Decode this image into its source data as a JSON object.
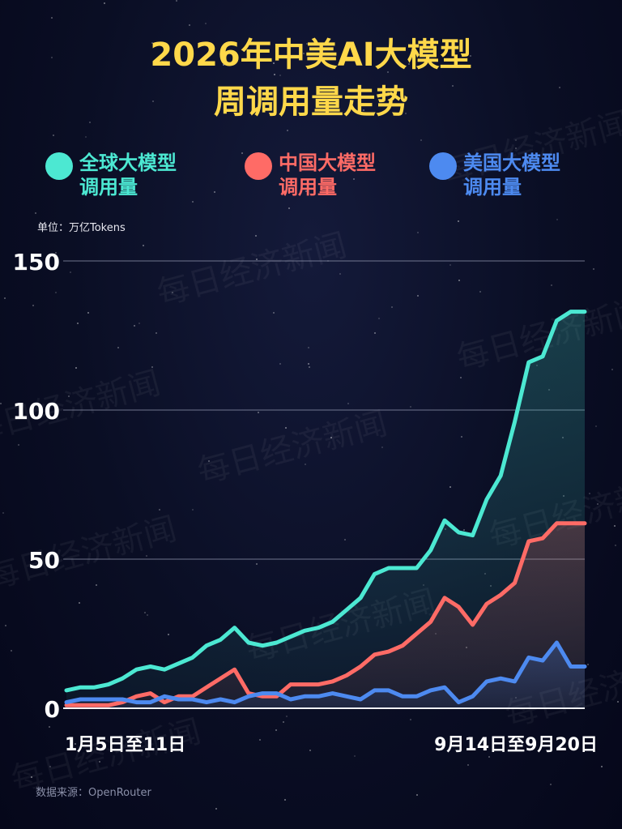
{
  "title_line1": "2026年中美AI大模型",
  "title_line2": "周调用量走势",
  "unit_label": "单位：万亿Tokens",
  "source": "数据来源：OpenRouter",
  "watermark": "每日经济新闻",
  "colors": {
    "global": "#4ce8d2",
    "china": "#ff6b66",
    "us": "#4d8af0",
    "title": "#ffd84a"
  },
  "chart_data": {
    "type": "area",
    "title": "2026年中美AI大模型周调用量走势",
    "ylabel": "单位：万亿Tokens",
    "ylim": [
      0,
      150
    ],
    "yticks": [
      0,
      50,
      100,
      150
    ],
    "grid": true,
    "legend_position": "top",
    "x_labels": [
      "1月5日至11日",
      "9月14日至9月20日"
    ],
    "x_count": 38,
    "series": [
      {
        "name": "全球大模型调用量",
        "label_line1": "全球大模型",
        "label_line2": "调用量",
        "color": "#4ce8d2",
        "values": [
          6,
          7,
          7,
          8,
          10,
          13,
          14,
          13,
          15,
          17,
          21,
          23,
          27,
          22,
          21,
          22,
          24,
          26,
          27,
          29,
          33,
          37,
          45,
          47,
          47,
          47,
          53,
          63,
          59,
          58,
          70,
          78,
          96,
          116,
          118,
          130,
          133,
          133
        ]
      },
      {
        "name": "中国大模型调用量",
        "label_line1": "中国大模型",
        "label_line2": "调用量",
        "color": "#ff6b66",
        "values": [
          1,
          1,
          1,
          1,
          2,
          4,
          5,
          2,
          4,
          4,
          7,
          10,
          13,
          5,
          4,
          4,
          8,
          8,
          8,
          9,
          11,
          14,
          18,
          19,
          21,
          25,
          29,
          37,
          34,
          28,
          35,
          38,
          42,
          56,
          57,
          62,
          62,
          62
        ]
      },
      {
        "name": "美国大模型调用量",
        "label_line1": "美国大模型",
        "label_line2": "调用量",
        "color": "#4d8af0",
        "values": [
          2,
          3,
          3,
          3,
          3,
          2,
          2,
          4,
          3,
          3,
          2,
          3,
          2,
          4,
          5,
          5,
          3,
          4,
          4,
          5,
          4,
          3,
          6,
          6,
          4,
          4,
          6,
          7,
          2,
          4,
          9,
          10,
          9,
          17,
          16,
          22,
          14,
          14
        ]
      }
    ]
  }
}
